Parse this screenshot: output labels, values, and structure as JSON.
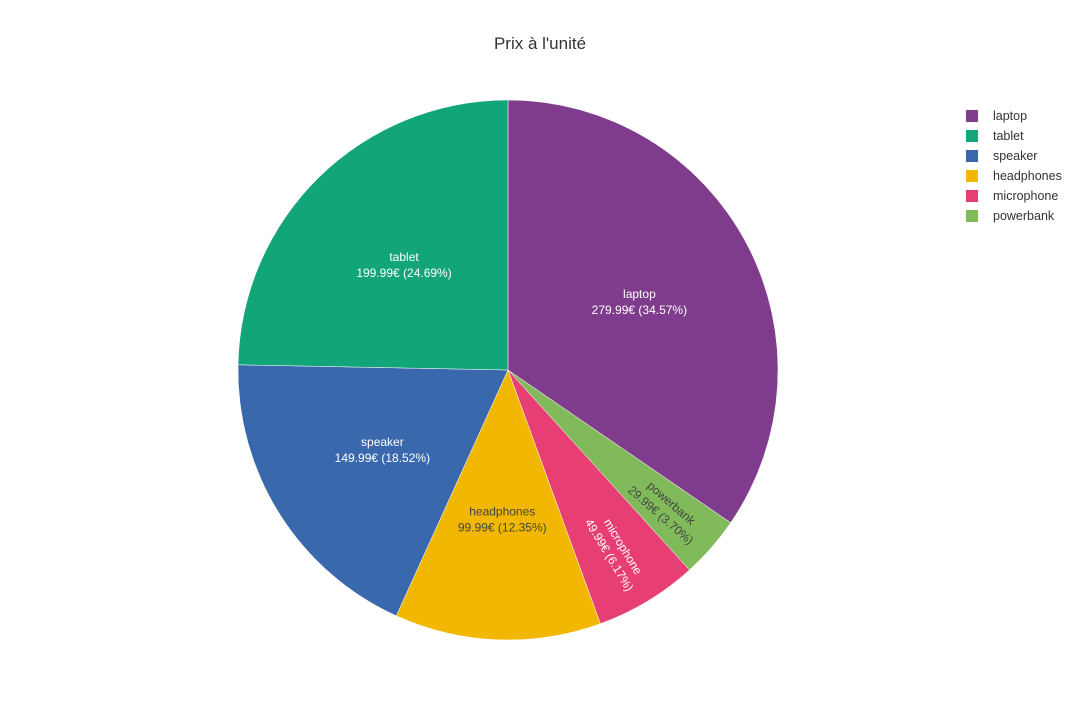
{
  "chart_data": {
    "type": "pie",
    "title": "Prix à l'unité",
    "currency": "€",
    "slices": [
      {
        "label": "laptop",
        "value": 279.99,
        "percent": "34.57%",
        "text": "279.99€ (34.57%)",
        "color": "#7F3C8D",
        "text_color": "#ffffff"
      },
      {
        "label": "powerbank",
        "value": 29.99,
        "percent": "3.70%",
        "text": "29.99€ (3.70%)",
        "color": "#80BA5A",
        "text_color": "#444444"
      },
      {
        "label": "microphone",
        "value": 49.99,
        "percent": "6.17%",
        "text": "49.99€ (6.17%)",
        "color": "#E73F74",
        "text_color": "#ffffff"
      },
      {
        "label": "headphones",
        "value": 99.99,
        "percent": "12.35%",
        "text": "99.99€ (12.35%)",
        "color": "#F2B701",
        "text_color": "#444444"
      },
      {
        "label": "speaker",
        "value": 149.99,
        "percent": "18.52%",
        "text": "149.99€ (18.52%)",
        "color": "#3969AC",
        "text_color": "#ffffff"
      },
      {
        "label": "tablet",
        "value": 199.99,
        "percent": "24.69%",
        "text": "199.99€ (24.69%)",
        "color": "#11A579",
        "text_color": "#ffffff"
      }
    ],
    "legend": {
      "placement": "top-right",
      "order": [
        "laptop",
        "tablet",
        "speaker",
        "headphones",
        "microphone",
        "powerbank"
      ]
    }
  }
}
